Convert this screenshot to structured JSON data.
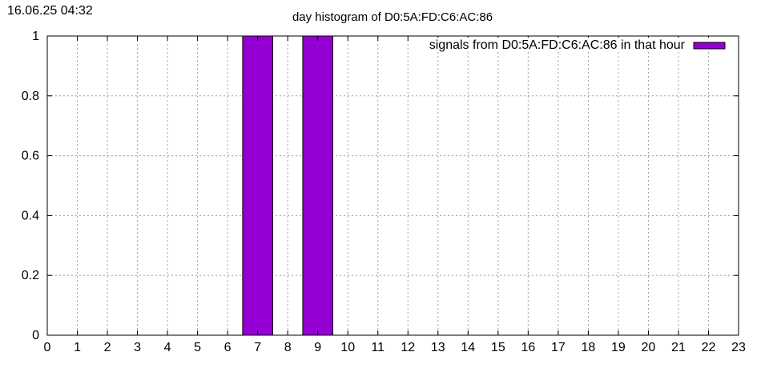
{
  "timestamp": "16.06.25 04:32",
  "chart_data": {
    "type": "bar",
    "title": "day histogram of D0:5A:FD:C6:AC:86",
    "xlabel": "",
    "ylabel": "",
    "xlim": [
      0,
      23
    ],
    "ylim": [
      0,
      1
    ],
    "x_ticks": [
      0,
      1,
      2,
      3,
      4,
      5,
      6,
      7,
      8,
      9,
      10,
      11,
      12,
      13,
      14,
      15,
      16,
      17,
      18,
      19,
      20,
      21,
      22,
      23
    ],
    "y_ticks": [
      0,
      0.2,
      0.4,
      0.6,
      0.8,
      1
    ],
    "grid": true,
    "legend_position": "top-right",
    "series": [
      {
        "name": "signals from D0:5A:FD:C6:AC:86 in that hour",
        "color": "#9400d3",
        "x": [
          7,
          9
        ],
        "values": [
          1,
          1
        ]
      }
    ]
  }
}
